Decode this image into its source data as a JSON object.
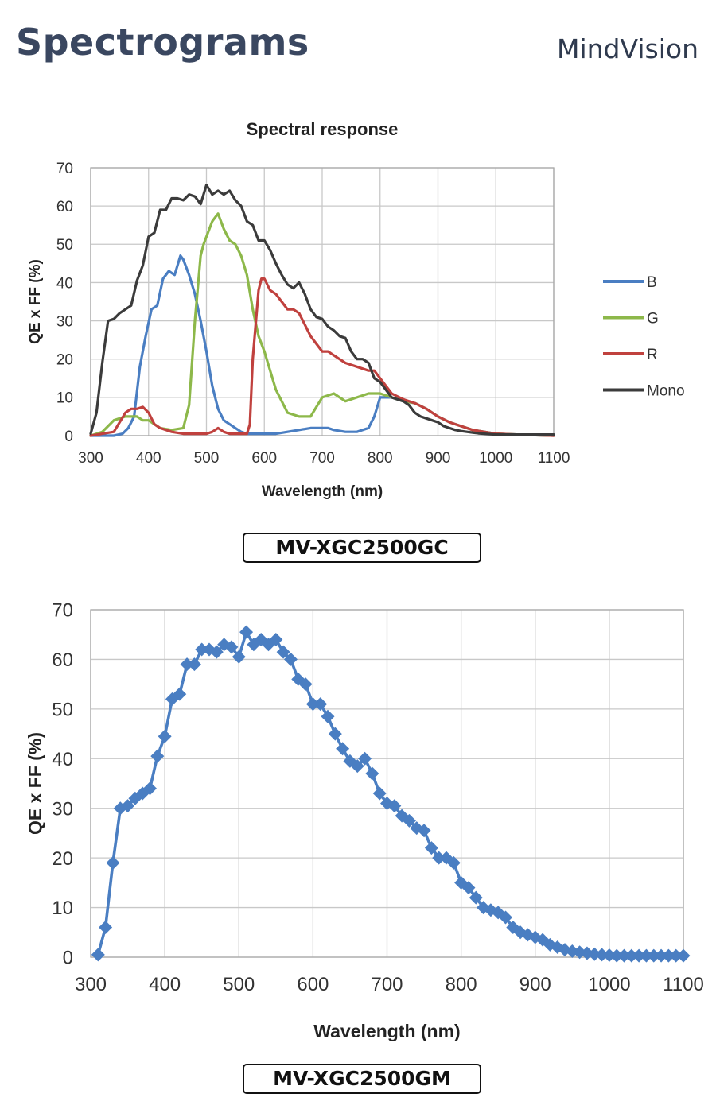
{
  "header": {
    "title": "Spectrograms",
    "brand": "MindVision"
  },
  "models": {
    "color": "MV-XGC2500GC",
    "mono": "MV-XGC2500GM"
  },
  "chart_data": [
    {
      "type": "line",
      "title": "Spectral response",
      "xlabel": "Wavelength (nm)",
      "ylabel": "QE x FF (%)",
      "xlim": [
        300,
        1100
      ],
      "ylim": [
        0,
        70
      ],
      "xticks": [
        300,
        400,
        500,
        600,
        700,
        800,
        900,
        1000,
        1100
      ],
      "yticks": [
        0,
        10,
        20,
        30,
        40,
        50,
        60,
        70
      ],
      "grid": true,
      "legend_position": "right",
      "series": [
        {
          "name": "B",
          "color": "#4a7ec2",
          "x": [
            300,
            320,
            340,
            355,
            365,
            375,
            385,
            395,
            405,
            415,
            425,
            435,
            445,
            455,
            460,
            470,
            480,
            490,
            500,
            510,
            520,
            530,
            540,
            550,
            560,
            570,
            580,
            600,
            620,
            640,
            660,
            680,
            700,
            710,
            720,
            740,
            760,
            780,
            790,
            800,
            820,
            840,
            860,
            880,
            900,
            920,
            940,
            960,
            980,
            1000,
            1050,
            1100
          ],
          "y": [
            0,
            0,
            0,
            0.5,
            2,
            5,
            18,
            26,
            33,
            34,
            41,
            43,
            42,
            47,
            46,
            42,
            37,
            30,
            22,
            13,
            7,
            4,
            3,
            2,
            1,
            0.5,
            0.5,
            0.5,
            0.5,
            1,
            1.5,
            2,
            2,
            2,
            1.5,
            1,
            1,
            2,
            5,
            10,
            10,
            9,
            8.5,
            7,
            5,
            3.5,
            2.5,
            1.5,
            1,
            0.5,
            0.2,
            0
          ]
        },
        {
          "name": "G",
          "color": "#8db84a",
          "x": [
            300,
            320,
            340,
            360,
            380,
            390,
            400,
            410,
            420,
            440,
            460,
            470,
            480,
            490,
            495,
            500,
            510,
            515,
            520,
            530,
            540,
            550,
            560,
            570,
            580,
            590,
            600,
            620,
            640,
            660,
            680,
            700,
            720,
            740,
            760,
            780,
            800,
            820,
            840,
            860,
            880,
            900,
            920,
            940,
            960,
            980,
            1000,
            1050,
            1100
          ],
          "y": [
            0,
            1,
            4,
            5,
            5,
            4,
            4,
            3,
            2,
            1.5,
            2,
            8,
            30,
            47,
            50,
            52,
            56,
            57,
            58,
            54,
            51,
            50,
            47,
            42,
            33,
            26,
            22,
            12,
            6,
            5,
            5,
            10,
            11,
            9,
            10,
            11,
            11,
            10,
            9,
            8.5,
            7,
            5,
            3.5,
            2.5,
            1.5,
            1,
            0.5,
            0.2,
            0
          ]
        },
        {
          "name": "R",
          "color": "#c0413e",
          "x": [
            300,
            320,
            340,
            360,
            370,
            380,
            390,
            400,
            410,
            420,
            440,
            460,
            480,
            500,
            510,
            520,
            530,
            540,
            560,
            570,
            575,
            580,
            590,
            595,
            600,
            610,
            620,
            630,
            640,
            650,
            660,
            670,
            680,
            690,
            700,
            710,
            720,
            740,
            760,
            780,
            790,
            800,
            820,
            840,
            860,
            880,
            900,
            920,
            940,
            960,
            980,
            1000,
            1050,
            1100
          ],
          "y": [
            0,
            0.5,
            1,
            6,
            7,
            7,
            7.5,
            6,
            3,
            2,
            1,
            0.5,
            0.5,
            0.5,
            1,
            2,
            1,
            0.5,
            0.5,
            0.5,
            3,
            20,
            38,
            41,
            41,
            38,
            37,
            35,
            33,
            33,
            32,
            29,
            26,
            24,
            22,
            22,
            21,
            19,
            18,
            17,
            17,
            15,
            11,
            9.5,
            8.5,
            7,
            5,
            3.5,
            2.5,
            1.5,
            1,
            0.5,
            0.2,
            0
          ]
        },
        {
          "name": "Mono",
          "color": "#3b3b3b",
          "x": [
            300,
            310,
            320,
            330,
            340,
            350,
            360,
            370,
            380,
            390,
            400,
            410,
            420,
            430,
            440,
            450,
            460,
            470,
            480,
            490,
            500,
            510,
            520,
            530,
            540,
            550,
            560,
            570,
            580,
            590,
            600,
            610,
            620,
            630,
            640,
            650,
            660,
            670,
            680,
            690,
            700,
            710,
            720,
            730,
            740,
            750,
            760,
            770,
            780,
            790,
            800,
            810,
            820,
            830,
            840,
            850,
            860,
            870,
            880,
            890,
            900,
            910,
            920,
            930,
            940,
            950,
            960,
            970,
            980,
            990,
            1000,
            1010,
            1020,
            1030,
            1040,
            1050,
            1060,
            1070,
            1080,
            1090,
            1100
          ],
          "y": [
            0.5,
            6,
            19,
            30,
            30.5,
            32,
            33,
            34,
            40.5,
            44.5,
            52,
            53,
            59,
            59,
            62,
            62,
            61.5,
            63,
            62.5,
            60.5,
            65.5,
            63,
            64,
            63,
            64,
            61.5,
            60,
            56,
            55,
            51,
            51,
            48.5,
            45,
            42,
            39.5,
            38.5,
            40,
            37,
            33,
            31,
            30.5,
            28.5,
            27.5,
            26,
            25.5,
            22,
            20,
            20,
            19,
            15,
            14,
            12,
            10,
            9.5,
            9,
            8,
            6,
            5,
            4.5,
            4,
            3.5,
            2.5,
            2,
            1.5,
            1.2,
            1,
            0.8,
            0.6,
            0.5,
            0.4,
            0.3,
            0.3,
            0.3,
            0.3,
            0.3,
            0.3,
            0.3,
            0.3,
            0.3,
            0.3,
            0.3
          ]
        }
      ]
    },
    {
      "type": "line",
      "title": "",
      "xlabel": "Wavelength (nm)",
      "ylabel": "QE x FF (%)",
      "xlim": [
        300,
        1100
      ],
      "ylim": [
        0,
        70
      ],
      "xticks": [
        300,
        400,
        500,
        600,
        700,
        800,
        900,
        1000,
        1100
      ],
      "yticks": [
        0,
        10,
        20,
        30,
        40,
        50,
        60,
        70
      ],
      "grid": true,
      "marker": "diamond",
      "series": [
        {
          "color": "#4a7ec2",
          "x": [
            310,
            320,
            330,
            340,
            350,
            360,
            370,
            380,
            390,
            400,
            410,
            420,
            430,
            440,
            450,
            460,
            470,
            480,
            490,
            500,
            510,
            520,
            530,
            540,
            550,
            560,
            570,
            580,
            590,
            600,
            610,
            620,
            630,
            640,
            650,
            660,
            670,
            680,
            690,
            700,
            710,
            720,
            730,
            740,
            750,
            760,
            770,
            780,
            790,
            800,
            810,
            820,
            830,
            840,
            850,
            860,
            870,
            880,
            890,
            900,
            910,
            920,
            930,
            940,
            950,
            960,
            970,
            980,
            990,
            1000,
            1010,
            1020,
            1030,
            1040,
            1050,
            1060,
            1070,
            1080,
            1090,
            1100
          ],
          "y": [
            0.5,
            6,
            19,
            30,
            30.5,
            32,
            33,
            34,
            40.5,
            44.5,
            52,
            53,
            59,
            59,
            62,
            62,
            61.5,
            63,
            62.5,
            60.5,
            65.5,
            63,
            64,
            63,
            64,
            61.5,
            60,
            56,
            55,
            51,
            51,
            48.5,
            45,
            42,
            39.5,
            38.5,
            40,
            37,
            33,
            31,
            30.5,
            28.5,
            27.5,
            26,
            25.5,
            22,
            20,
            20,
            19,
            15,
            14,
            12,
            10,
            9.5,
            9,
            8,
            6,
            5,
            4.5,
            4,
            3.5,
            2.5,
            2,
            1.5,
            1.2,
            1,
            0.8,
            0.6,
            0.5,
            0.4,
            0.3,
            0.3,
            0.3,
            0.3,
            0.3,
            0.3,
            0.3,
            0.3,
            0.3,
            0.3
          ]
        }
      ]
    }
  ]
}
